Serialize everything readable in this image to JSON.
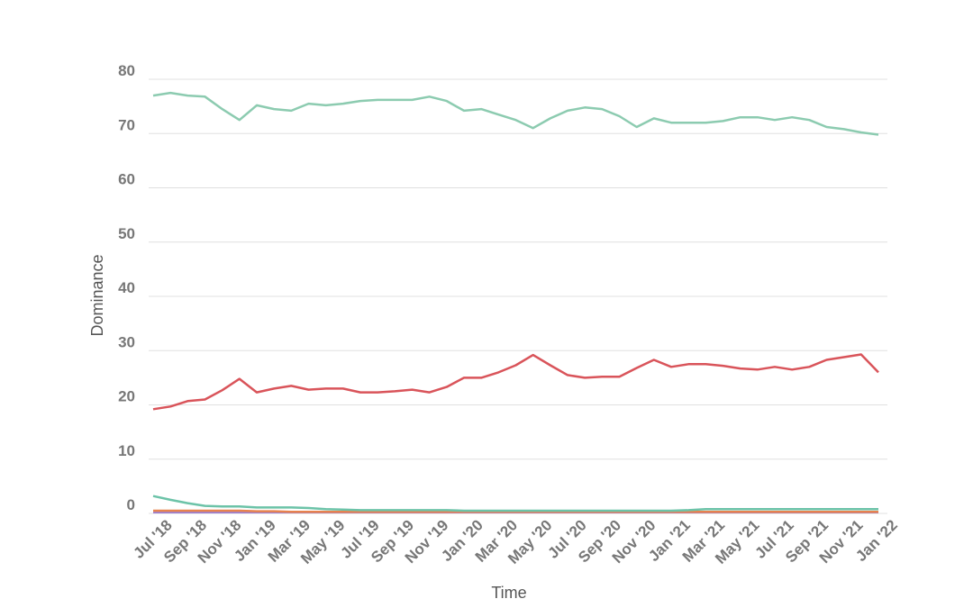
{
  "chart_data": {
    "type": "line",
    "x_label": "Time",
    "y_label": "Dominance",
    "categories": [
      "Jul '18",
      null,
      "Sep '18",
      null,
      "Nov '18",
      null,
      "Jan '19",
      null,
      "Mar '19",
      null,
      "May '19",
      null,
      "Jul '19",
      null,
      "Sep '19",
      null,
      "Nov '19",
      null,
      "Jan '20",
      null,
      "Mar '20",
      null,
      "May '20",
      null,
      "Jul '20",
      null,
      "Sep '20",
      null,
      "Nov '20",
      null,
      "Jan '21",
      null,
      "Mar '21",
      null,
      "May '21",
      null,
      "Jul '21",
      null,
      "Sep '21",
      null,
      "Nov '21",
      null,
      "Jan '22"
    ],
    "series": [
      {
        "color": "#8ccbb0",
        "values": [
          77,
          77.5,
          77,
          76.8,
          74.5,
          72.5,
          75.2,
          74.5,
          74.2,
          75.5,
          75.2,
          75.5,
          76,
          76.2,
          76.2,
          76.2,
          76.8,
          76,
          74.2,
          74.5,
          73.5,
          72.5,
          71,
          72.8,
          74.2,
          74.8,
          74.5,
          73.2,
          71.2,
          72.8,
          72,
          72,
          72,
          72.3,
          73,
          73,
          72.5,
          73,
          72.5,
          71.2,
          70.8,
          70.2,
          69.8
        ]
      },
      {
        "color": "#d9545a",
        "values": [
          19.2,
          19.7,
          20.7,
          21,
          22.7,
          24.8,
          22.3,
          23,
          23.5,
          22.8,
          23,
          23,
          22.3,
          22.3,
          22.5,
          22.8,
          22.3,
          23.3,
          25,
          25,
          26,
          27.3,
          29.2,
          27.3,
          25.5,
          25,
          25.2,
          25.2,
          26.8,
          28.3,
          27,
          27.5,
          27.5,
          27.2,
          26.7,
          26.5,
          27,
          26.5,
          27,
          28.3,
          28.8,
          29.3,
          26
        ]
      },
      {
        "color": "#6cc3a8",
        "values": [
          3.2,
          2.5,
          1.9,
          1.4,
          1.3,
          1.3,
          1.1,
          1.1,
          1.1,
          1.0,
          0.8,
          0.7,
          0.6,
          0.6,
          0.6,
          0.6,
          0.6,
          0.6,
          0.5,
          0.5,
          0.5,
          0.5,
          0.5,
          0.5,
          0.5,
          0.5,
          0.5,
          0.5,
          0.5,
          0.5,
          0.5,
          0.6,
          0.8,
          0.8,
          0.8,
          0.8,
          0.8,
          0.8,
          0.8,
          0.8,
          0.8,
          0.8,
          0.8
        ]
      },
      {
        "color": "#e8834f",
        "values": [
          0.5,
          0.5,
          0.5,
          0.5,
          0.5,
          0.5,
          0.4,
          0.4,
          0.3,
          0.3,
          0.3,
          0.3,
          0.3,
          0.3,
          0.3,
          0.3,
          0.3,
          0.3,
          0.3,
          0.3,
          0.3,
          0.3,
          0.3,
          0.3,
          0.3,
          0.3,
          0.3,
          0.3,
          0.3,
          0.3,
          0.3,
          0.3,
          0.3,
          0.3,
          0.3,
          0.3,
          0.3,
          0.3,
          0.3,
          0.3,
          0.3,
          0.3,
          0.3
        ]
      },
      {
        "color": "#9b7fd1",
        "values": [
          0.2,
          0.2,
          0.2,
          0.2,
          0.2,
          0.2,
          0.2,
          0.2,
          0.2,
          0.2,
          0.2,
          0.2,
          0.2,
          0.2,
          0.2,
          0.2,
          0.2,
          0.2,
          0.2,
          0.2,
          0.2,
          0.2,
          0.2,
          0.2,
          0.2,
          0.2,
          0.2,
          0.2,
          0.2,
          0.2,
          0.2,
          0.2,
          0.2,
          0.2,
          0.2,
          0.2,
          0.2,
          0.2,
          0.2,
          0.2,
          0.2,
          0.2,
          0.2
        ]
      }
    ],
    "ylim": [
      0,
      80
    ],
    "yticks": [
      0,
      10,
      20,
      30,
      40,
      50,
      60,
      70,
      80
    ],
    "grid": true
  }
}
